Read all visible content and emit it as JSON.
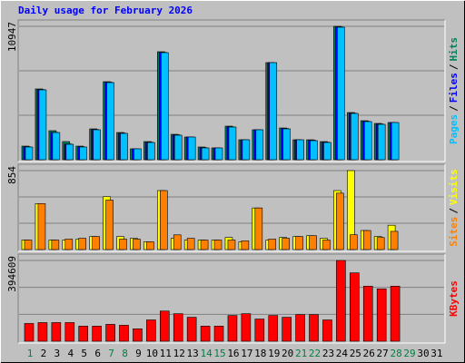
{
  "chart_data": [
    {
      "type": "bar",
      "title": "Daily usage for February 2026",
      "ylim": [
        0,
        10947
      ],
      "yticks": [
        10947
      ],
      "legend_separator": "/",
      "series": [
        {
          "name": "Pages",
          "color": "#00c0ff",
          "values": [
            1043,
            5735,
            2234,
            1266,
            1043,
            2458,
            6330,
            2160,
            894,
            1415,
            8788,
            2011,
            1862,
            968,
            968,
            2681,
            1638,
            2458,
            7968,
            2532,
            1638,
            1564,
            1415,
            10872,
            3798,
            3128,
            2904,
            3053,
            0,
            0,
            0
          ]
        },
        {
          "name": "Files",
          "color": "#0000ff",
          "values": [
            1060,
            5760,
            2250,
            1290,
            1060,
            2480,
            6360,
            2180,
            894,
            1440,
            8810,
            2040,
            1862,
            990,
            968,
            2700,
            1638,
            2458,
            7968,
            2560,
            1638,
            1600,
            1440,
            10900,
            3820,
            3150,
            2930,
            3053,
            0,
            0,
            0
          ]
        },
        {
          "name": "Hits",
          "color": "#00805c",
          "values": [
            1117,
            5809,
            2383,
            1489,
            1117,
            2532,
            6404,
            2234,
            894,
            1489,
            8862,
            2085,
            1862,
            1043,
            968,
            2755,
            1638,
            2458,
            7968,
            2606,
            1638,
            1638,
            1489,
            10947,
            3872,
            3202,
            2979,
            3053,
            0,
            0,
            0
          ]
        }
      ]
    },
    {
      "type": "bar",
      "ylim": [
        0,
        854
      ],
      "yticks": [
        854
      ],
      "legend_separator": "/",
      "series": [
        {
          "name": "Sites",
          "color": "#ff8000",
          "values": [
            103,
            497,
            103,
            113,
            122,
            141,
            535,
            113,
            113,
            84,
            638,
            159,
            122,
            103,
            103,
            103,
            94,
            450,
            113,
            122,
            141,
            150,
            103,
            610,
            160,
            206,
            131,
            197,
            0,
            0,
            0
          ]
        },
        {
          "name": "Visits",
          "color": "#ffff00",
          "values": [
            103,
            497,
            103,
            103,
            113,
            141,
            572,
            141,
            122,
            84,
            638,
            122,
            103,
            103,
            103,
            131,
            84,
            450,
            103,
            131,
            141,
            150,
            122,
            638,
            854,
            206,
            141,
            263,
            0,
            0,
            0
          ]
        }
      ]
    },
    {
      "type": "bar",
      "ylim": [
        0,
        394609
      ],
      "yticks": [
        394609
      ],
      "categories": [
        "1",
        "2",
        "3",
        "4",
        "5",
        "6",
        "7",
        "8",
        "9",
        "10",
        "11",
        "12",
        "13",
        "14",
        "15",
        "16",
        "17",
        "18",
        "19",
        "20",
        "21",
        "22",
        "23",
        "24",
        "25",
        "26",
        "27",
        "28",
        "29",
        "30",
        "31"
      ],
      "category_colors": [
        "#008040",
        "#000000",
        "#000000",
        "#000000",
        "#000000",
        "#000000",
        "#008040",
        "#008040",
        "#000000",
        "#000000",
        "#000000",
        "#000000",
        "#000000",
        "#008040",
        "#008040",
        "#000000",
        "#000000",
        "#000000",
        "#000000",
        "#000000",
        "#008040",
        "#008040",
        "#000000",
        "#000000",
        "#000000",
        "#000000",
        "#000000",
        "#008040",
        "#008040",
        "#000000",
        "#000000"
      ],
      "series": [
        {
          "name": "KBytes",
          "color": "#ff0000",
          "values": [
            86720,
            91056,
            91056,
            91056,
            73712,
            73712,
            82384,
            78048,
            60704,
            104064,
            147424,
            134416,
            117072,
            73712,
            73712,
            125744,
            134416,
            108400,
            125744,
            117072,
            130080,
            130080,
            104064,
            394609,
            333872,
            268832,
            255824,
            268832,
            0,
            0,
            0
          ]
        }
      ]
    }
  ]
}
